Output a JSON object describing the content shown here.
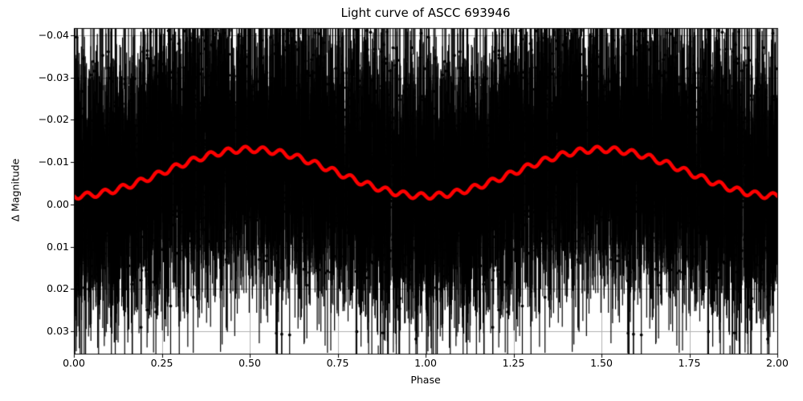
{
  "chart_data": {
    "type": "scatter",
    "title": "Light curve of ASCC 693946",
    "xlabel": "Phase",
    "ylabel": "Δ Magnitude",
    "xlim": [
      0,
      2
    ],
    "ylim": [
      -0.0417,
      0.0353
    ],
    "y_axis_inverted": true,
    "grid": true,
    "grid_color": "#b0b0b0",
    "frame_color": "#000000",
    "background_color": "#ffffff",
    "xticks": [
      0,
      0.25,
      0.5,
      0.75,
      1,
      1.25,
      1.5,
      1.75,
      2
    ],
    "xtick_labels": [
      "0.00",
      "0.25",
      "0.50",
      "0.75",
      "1.00",
      "1.25",
      "1.50",
      "1.75",
      "2.00"
    ],
    "yticks": [
      -0.04,
      -0.03,
      -0.02,
      -0.01,
      0,
      0.01,
      0.02,
      0.03
    ],
    "ytick_labels": [
      "−0.04",
      "−0.03",
      "−0.02",
      "−0.01",
      "0.00",
      "0.01",
      "0.02",
      "0.03"
    ],
    "series": [
      {
        "name": "photometric-observations-with-errorbars",
        "type": "errorbar-scatter",
        "color": "#000000",
        "marker": "dot",
        "marker_radius": 1.9,
        "bar_width": 1.2,
        "model": {
          "comment": "thousands of folded photometric points, duplicated over phase 0-1 and 1-2; regenerated procedurally from these measured cloud statistics",
          "points_per_cycle": 3600,
          "duplicated_cycles": 2,
          "seed": 7,
          "noise_core_frac": 0.72,
          "noise_core_sigma": 0.0085,
          "noise_broad_sigma": 0.017,
          "noise_broad_shift": -0.008,
          "err_base": 0.007,
          "err_rand": 0.013,
          "err_extra_prob": 0.25,
          "err_extra": 0.015
        }
      },
      {
        "name": "phase-folded-mean-curve",
        "type": "line",
        "color": "#ff0000",
        "line_width": 4.5,
        "model": {
          "comment": "mean magnitude = base + amplitude*cos(2*pi*phase) + ripple_amplitude*sin(2*pi*ripple_frequency*phase); peak ≈ -0.013 at phase 0.5/1.5, trough ≈ -0.002 at phase 0/1/2",
          "base": -0.0075,
          "amplitude": 0.0055,
          "ripple_amplitude": 0.0007,
          "ripple_frequency": 20,
          "samples": 1400
        }
      }
    ]
  }
}
